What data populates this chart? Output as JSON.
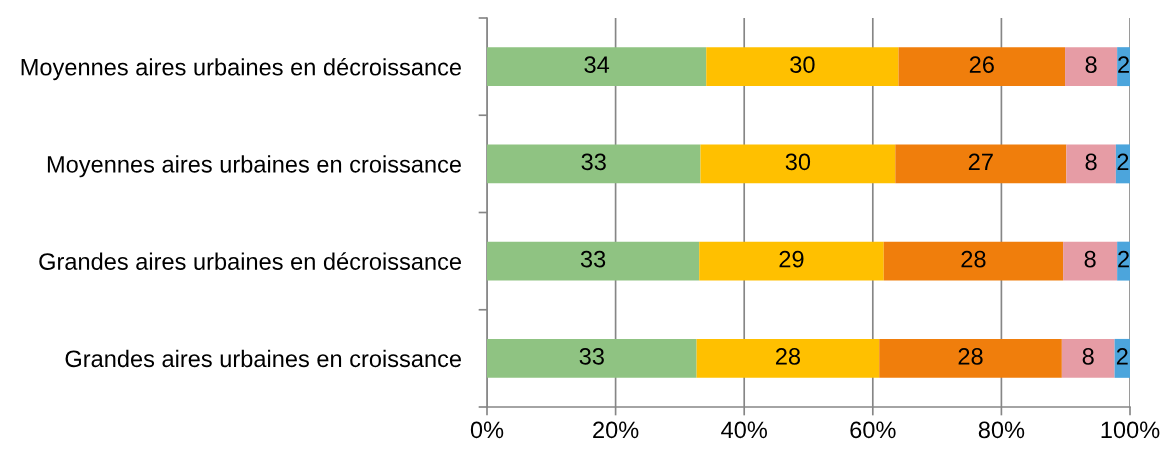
{
  "chart_data": {
    "type": "bar",
    "orientation": "horizontal",
    "stacked": true,
    "categories": [
      "Moyennes aires urbaines en décroissance",
      "Moyennes aires urbaines en croissance",
      "Grandes aires urbaines en décroissance",
      "Grandes aires urbaines en croissance"
    ],
    "series": [
      {
        "color": "#8fc382",
        "values": [
          34.1,
          33.2,
          33.0,
          32.6
        ],
        "value_labels": [
          "34",
          "33",
          "33",
          "33"
        ]
      },
      {
        "color": "#ffc000",
        "values": [
          29.9,
          30.3,
          28.7,
          28.4
        ],
        "value_labels": [
          "30",
          "30",
          "29",
          "28"
        ]
      },
      {
        "color": "#f07e0c",
        "values": [
          25.9,
          26.6,
          27.9,
          28.4
        ],
        "value_labels": [
          "26",
          "27",
          "28",
          "28"
        ]
      },
      {
        "color": "#e69ca5",
        "values": [
          8.1,
          7.7,
          8.4,
          8.2
        ],
        "value_labels": [
          "8",
          "8",
          "8",
          "8"
        ]
      },
      {
        "color": "#4ca5dc",
        "values": [
          2.0,
          2.2,
          2.0,
          2.4
        ],
        "value_labels": [
          "2",
          "2",
          "2",
          "2"
        ]
      }
    ],
    "xlim": [
      0,
      100
    ],
    "xticks": [
      {
        "value": 0,
        "label": "0%"
      },
      {
        "value": 20,
        "label": "20%"
      },
      {
        "value": 40,
        "label": "40%"
      },
      {
        "value": 60,
        "label": "60%"
      },
      {
        "value": 80,
        "label": "80%"
      },
      {
        "value": 100,
        "label": "100%"
      }
    ],
    "grid": "x"
  }
}
